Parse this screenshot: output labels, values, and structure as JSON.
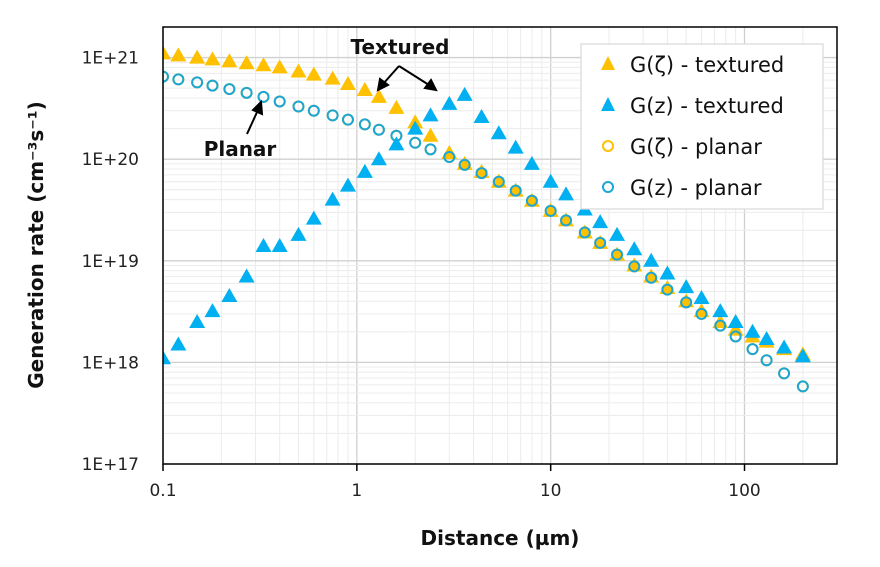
{
  "chart_data": {
    "type": "scatter",
    "title": "",
    "xlabel": "Distance (µm)",
    "ylabel": "Generation rate (cm⁻³s⁻¹)",
    "xscale": "log",
    "yscale": "log",
    "xlim": [
      0.1,
      300
    ],
    "ylim": [
      1e+17,
      2e+21
    ],
    "grid": true,
    "legend_position": "top-right",
    "x_ticks": [
      "0.1",
      "1",
      "10",
      "100"
    ],
    "y_ticks": [
      "1E+17",
      "1E+18",
      "1E+19",
      "1E+20",
      "1E+21"
    ],
    "annotations": [
      "Textured",
      "Planar"
    ],
    "colors": {
      "orange": "#FFC000",
      "blue": "#00B0F0",
      "blue_open": "#1BA6D6"
    },
    "x": [
      0.1,
      0.12,
      0.15,
      0.18,
      0.22,
      0.27,
      0.33,
      0.4,
      0.5,
      0.6,
      0.75,
      0.9,
      1.1,
      1.3,
      1.6,
      2,
      2.4,
      3,
      3.6,
      4.4,
      5.4,
      6.6,
      8,
      10,
      12,
      15,
      18,
      22,
      27,
      33,
      40,
      50,
      60,
      75,
      90,
      110,
      130,
      160,
      200
    ],
    "series": [
      {
        "name": "G(ζ) - planar",
        "marker": "open-circle",
        "color": "#FFC000",
        "values": [
          6.5e+20,
          6.1e+20,
          5.7e+20,
          5.3e+20,
          4.9e+20,
          4.5e+20,
          4.1e+20,
          3.7e+20,
          3.3e+20,
          3e+20,
          2.7e+20,
          2.45e+20,
          2.2e+20,
          1.95e+20,
          1.7e+20,
          1.45e+20,
          1.25e+20,
          1.05e+20,
          8.8e+19,
          7.3e+19,
          6e+19,
          4.9e+19,
          3.9e+19,
          3.1e+19,
          2.5e+19,
          1.9e+19,
          1.5e+19,
          1.15e+19,
          8.8e+18,
          6.8e+18,
          5.2e+18,
          3.9e+18,
          3e+18,
          2.3e+18,
          1.8e+18,
          1.35e+18,
          1.05e+18,
          7.8e+17,
          5.8e+17
        ]
      },
      {
        "name": "G(ζ) - textured",
        "marker": "filled-triangle",
        "color": "#FFC000",
        "values": [
          1.1e+21,
          1.05e+21,
          1e+21,
          9.6e+20,
          9.2e+20,
          8.8e+20,
          8.4e+20,
          8e+20,
          7.3e+20,
          6.8e+20,
          6.2e+20,
          5.5e+20,
          4.8e+20,
          4.1e+20,
          3.2e+20,
          2.3e+20,
          1.7e+20,
          1.15e+20,
          9e+19,
          7.5e+19,
          6e+19,
          4.9e+19,
          3.9e+19,
          3.1e+19,
          2.5e+19,
          1.9e+19,
          1.5e+19,
          1.15e+19,
          9e+18,
          7e+18,
          5.4e+18,
          4e+18,
          3.2e+18,
          2.5e+18,
          2.1e+18,
          1.8e+18,
          1.6e+18,
          1.35e+18,
          1.2e+18
        ]
      },
      {
        "name": "G(z) - planar",
        "marker": "open-circle",
        "color": "#1BA6D6",
        "values": [
          6.5e+20,
          6.1e+20,
          5.7e+20,
          5.3e+20,
          4.9e+20,
          4.5e+20,
          4.1e+20,
          3.7e+20,
          3.3e+20,
          3e+20,
          2.7e+20,
          2.45e+20,
          2.2e+20,
          1.95e+20,
          1.7e+20,
          1.45e+20,
          1.25e+20,
          1.05e+20,
          8.8e+19,
          7.3e+19,
          6e+19,
          4.9e+19,
          3.9e+19,
          3.1e+19,
          2.5e+19,
          1.9e+19,
          1.5e+19,
          1.15e+19,
          8.8e+18,
          6.8e+18,
          5.2e+18,
          3.9e+18,
          3e+18,
          2.3e+18,
          1.8e+18,
          1.35e+18,
          1.05e+18,
          7.8e+17,
          5.8e+17
        ]
      },
      {
        "name": "G(z) - textured",
        "marker": "filled-triangle",
        "color": "#00B0F0",
        "values": [
          1.1e+18,
          1.5e+18,
          2.5e+18,
          3.2e+18,
          4.5e+18,
          7e+18,
          1.4e+19,
          1.4e+19,
          1.8e+19,
          2.6e+19,
          4e+19,
          5.5e+19,
          7.5e+19,
          1e+20,
          1.4e+20,
          2e+20,
          2.7e+20,
          3.5e+20,
          4.3e+20,
          2.6e+20,
          1.8e+20,
          1.3e+20,
          9e+19,
          6e+19,
          4.5e+19,
          3.2e+19,
          2.4e+19,
          1.8e+19,
          1.3e+19,
          1e+19,
          7.5e+18,
          5.5e+18,
          4.3e+18,
          3.2e+18,
          2.5e+18,
          2e+18,
          1.7e+18,
          1.4e+18,
          1.15e+18
        ]
      }
    ],
    "legend": [
      "G(ζ) - textured",
      "G(z) - textured",
      "G(ζ) - planar",
      "G(z) - planar"
    ]
  }
}
